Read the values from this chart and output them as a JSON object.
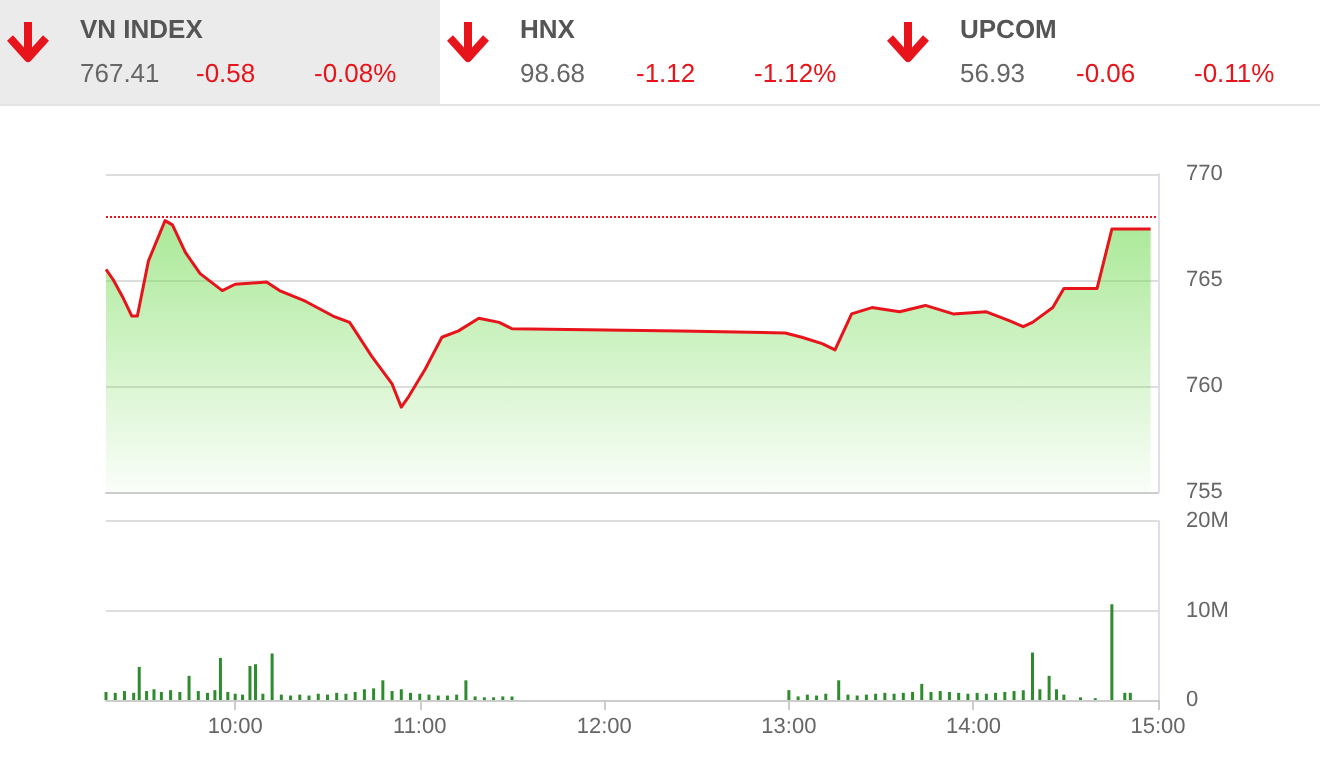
{
  "chart_data": [
    {
      "type": "other",
      "categories": [
        "VN INDEX",
        "HNX",
        "UPCOM"
      ],
      "values": [
        767.41,
        98.68,
        56.93
      ],
      "data_labels": true,
      "annotations": [
        "-0.58",
        "-0.08%",
        "-1.12",
        "-1.12%",
        "-0.06",
        "-0.11%"
      ]
    },
    {
      "type": "area",
      "tick_labels": "y",
      "grid": "y",
      "marker": "none",
      "xlim": [
        9.3,
        15
      ],
      "ylim": [
        755,
        770
      ],
      "yticks": [
        755,
        760,
        765,
        770
      ],
      "ref_lines": [
        {
          "axis": "y",
          "value": 767.99,
          "color": "#e8141b",
          "line_style": "dotted"
        }
      ],
      "series": [
        {
          "color": "#e8141b",
          "x": [
            9.3,
            9.34,
            9.39,
            9.44,
            9.47,
            9.53,
            9.62,
            9.66,
            9.73,
            9.81,
            9.93,
            10.0,
            10.17,
            10.24,
            10.38,
            10.53,
            10.62,
            10.74,
            10.85,
            10.9,
            10.94,
            11.03,
            11.12,
            11.21,
            11.32,
            11.43,
            11.5,
            12.41,
            12.98,
            13.07,
            13.18,
            13.25,
            13.34,
            13.45,
            13.6,
            13.74,
            13.89,
            14.07,
            14.19,
            14.27,
            14.32,
            14.43,
            14.49,
            14.67,
            14.75,
            14.96
          ],
          "values": [
            765.5,
            765.0,
            764.2,
            763.3,
            763.3,
            765.9,
            767.8,
            767.6,
            766.3,
            765.3,
            764.5,
            764.8,
            764.9,
            764.5,
            764.0,
            763.3,
            763.0,
            761.4,
            760.1,
            759.0,
            759.5,
            760.8,
            762.3,
            762.6,
            763.2,
            763.0,
            762.7,
            762.6,
            762.5,
            762.3,
            762.0,
            761.7,
            763.4,
            763.7,
            763.5,
            763.8,
            763.4,
            763.5,
            763.1,
            762.8,
            763.0,
            763.7,
            764.6,
            764.6,
            767.4,
            767.4
          ]
        }
      ]
    },
    {
      "type": "bar",
      "grid": "y",
      "color": "#2e8b2e",
      "xlim": [
        9.3,
        15
      ],
      "xticks": [
        {
          "value": 10,
          "label": "10:00"
        },
        {
          "value": 11,
          "label": "11:00"
        },
        {
          "value": 12,
          "label": "12:00"
        },
        {
          "value": 13,
          "label": "13:00"
        },
        {
          "value": 14,
          "label": "14:00"
        },
        {
          "value": 15,
          "label": "15:00"
        }
      ],
      "ylim": [
        0,
        20
      ],
      "yticks": [
        0,
        {
          "value": 10,
          "label": "10M"
        },
        {
          "value": 20,
          "label": "20M"
        }
      ],
      "x": [
        9.3,
        9.35,
        9.4,
        9.45,
        9.48,
        9.52,
        9.56,
        9.6,
        9.65,
        9.7,
        9.75,
        9.8,
        9.85,
        9.89,
        9.92,
        9.96,
        10.0,
        10.04,
        10.08,
        10.11,
        10.15,
        10.2,
        10.25,
        10.3,
        10.35,
        10.4,
        10.45,
        10.5,
        10.55,
        10.6,
        10.65,
        10.7,
        10.75,
        10.8,
        10.85,
        10.9,
        10.95,
        11.0,
        11.05,
        11.1,
        11.15,
        11.2,
        11.25,
        11.3,
        11.35,
        11.4,
        11.45,
        11.5,
        13.0,
        13.05,
        13.1,
        13.15,
        13.2,
        13.27,
        13.32,
        13.37,
        13.42,
        13.47,
        13.52,
        13.57,
        13.62,
        13.67,
        13.72,
        13.77,
        13.82,
        13.87,
        13.92,
        13.97,
        14.02,
        14.07,
        14.12,
        14.17,
        14.22,
        14.27,
        14.32,
        14.36,
        14.41,
        14.45,
        14.49,
        14.58,
        14.66,
        14.75,
        14.82,
        14.85
      ],
      "values": [
        0.9,
        0.8,
        1.0,
        0.8,
        3.7,
        1.0,
        1.2,
        0.9,
        1.1,
        0.9,
        2.7,
        1.0,
        0.8,
        1.1,
        4.7,
        0.9,
        0.7,
        0.6,
        3.8,
        4.0,
        0.7,
        5.2,
        0.6,
        0.5,
        0.6,
        0.5,
        0.7,
        0.6,
        0.8,
        0.7,
        0.9,
        1.2,
        1.3,
        2.2,
        1.0,
        1.2,
        0.8,
        0.7,
        0.6,
        0.5,
        0.5,
        0.6,
        2.2,
        0.4,
        0.3,
        0.3,
        0.4,
        0.4,
        1.1,
        0.4,
        0.6,
        0.5,
        0.7,
        2.2,
        0.6,
        0.5,
        0.6,
        0.7,
        0.8,
        0.7,
        0.8,
        0.9,
        1.8,
        0.9,
        1.0,
        0.9,
        0.8,
        0.7,
        0.8,
        0.7,
        0.8,
        0.9,
        1.0,
        1.1,
        5.3,
        1.2,
        2.7,
        1.2,
        0.6,
        0.3,
        0.2,
        10.7,
        0.8,
        0.8
      ]
    }
  ]
}
